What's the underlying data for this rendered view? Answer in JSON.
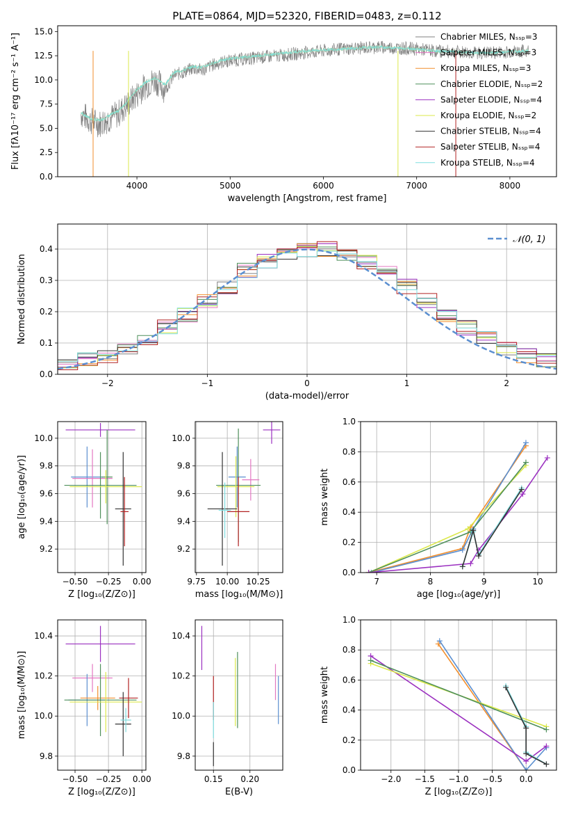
{
  "figure": {
    "title": "PLATE=0864, MJD=52320, FIBERID=0483, z=0.112"
  },
  "palette": {
    "chabrier_miles": "#808080",
    "salpeter_miles": "#e377c2",
    "kroupa_miles": "#f28e2b",
    "chabrier_elodie": "#4e8f5a",
    "salpeter_elodie": "#9b30c0",
    "kroupa_elodie": "#dbe84a",
    "chabrier_stelib": "#333333",
    "salpeter_stelib": "#b22222",
    "kroupa_stelib": "#7fdde0",
    "miles_blue": "#5b8fd0",
    "normal_curve": "#5b8fd0"
  },
  "chart_data": [
    {
      "id": "spectrum",
      "type": "line",
      "title": "PLATE=0864, MJD=52320, FIBERID=0483, z=0.112",
      "xlabel": "wavelength [Angstrom, rest frame]",
      "ylabel": "Flux [fλ10⁻¹⁷ erg cm⁻² s⁻¹ A⁻¹]",
      "xlim": [
        3150,
        8500
      ],
      "ylim": [
        0,
        15.6
      ],
      "xticks": [
        4000,
        5000,
        6000,
        7000,
        8000
      ],
      "yticks": [
        0.0,
        2.5,
        5.0,
        7.5,
        10.0,
        12.5,
        15.0
      ],
      "legend_position": "right",
      "legend": [
        "Chabrier MILES, Nₛₛₚ=3",
        "Salpeter MILES, Nₛₛₚ=3",
        "Kroupa MILES, Nₛₛₚ=3",
        "Chabrier ELODIE, Nₛₛₚ=2",
        "Salpeter ELODIE, Nₛₛₚ=4",
        "Kroupa ELODIE, Nₛₛₚ=2",
        "Chabrier STELIB, Nₛₛₚ=4",
        "Salpeter STELIB, Nₛₛₚ=4",
        "Kroupa STELIB, Nₛₛₚ=4"
      ],
      "data_wavelength": [
        3400,
        3500,
        3600,
        3700,
        3800,
        3900,
        4000,
        4100,
        4200,
        4300,
        4400,
        4500,
        4600,
        4700,
        4800,
        4900,
        5000,
        5200,
        5400,
        5600,
        5800,
        6000,
        6200,
        6400,
        6600,
        6800,
        7000,
        7200,
        7400,
        7600,
        7800,
        8000,
        8200
      ],
      "data_flux": [
        6.5,
        5.8,
        5.5,
        6.0,
        6.5,
        7.5,
        8.5,
        9.5,
        10.0,
        9.0,
        10.5,
        10.8,
        11.2,
        11.0,
        11.5,
        11.8,
        12.0,
        12.2,
        12.4,
        12.6,
        12.8,
        13.0,
        13.2,
        13.3,
        13.4,
        13.3,
        13.2,
        13.0,
        12.9,
        12.8,
        12.8,
        12.9,
        13.0
      ],
      "model_flux": [
        6.6,
        6.0,
        5.8,
        6.3,
        6.8,
        7.8,
        9.0,
        9.8,
        10.2,
        9.5,
        10.8,
        11.0,
        11.4,
        11.3,
        11.7,
        12.0,
        12.2,
        12.4,
        12.6,
        12.8,
        13.0,
        13.1,
        13.2,
        13.3,
        13.4,
        13.3,
        13.2,
        13.0,
        12.9,
        12.8,
        12.8,
        12.9,
        13.0
      ]
    },
    {
      "id": "residuals",
      "type": "line",
      "xlabel": "(data-model)/error",
      "ylabel": "Normed distribution",
      "xlim": [
        -2.5,
        2.5
      ],
      "ylim": [
        0,
        0.48
      ],
      "xticks": [
        -2,
        -1,
        0,
        1,
        2
      ],
      "xtick_labels": [
        "−2",
        "−1",
        "0",
        "1",
        "2"
      ],
      "yticks": [
        0.0,
        0.1,
        0.2,
        0.3,
        0.4
      ],
      "grid": true,
      "legend_position": "top-right",
      "legend": [
        "𝒩(0, 1)"
      ],
      "bin_edges": [
        -2.5,
        -2.3,
        -2.1,
        -1.9,
        -1.7,
        -1.5,
        -1.3,
        -1.1,
        -0.9,
        -0.7,
        -0.5,
        -0.3,
        -0.1,
        0.1,
        0.3,
        0.5,
        0.7,
        0.9,
        1.1,
        1.3,
        1.5,
        1.7,
        1.9,
        2.1,
        2.3,
        2.5
      ],
      "histogram_heights": [
        0.03,
        0.045,
        0.06,
        0.085,
        0.115,
        0.15,
        0.19,
        0.235,
        0.28,
        0.33,
        0.36,
        0.38,
        0.395,
        0.4,
        0.385,
        0.36,
        0.33,
        0.28,
        0.235,
        0.19,
        0.15,
        0.115,
        0.085,
        0.06,
        0.045
      ]
    },
    {
      "id": "age-vs-z",
      "type": "scatter",
      "xlabel": "Z [log₁₀(Z/Z⊙)]",
      "ylabel": "age  [log₁₀(age/yr)]",
      "xlim": [
        -0.63,
        0.03
      ],
      "ylim": [
        9.03,
        10.12
      ],
      "xticks": [
        -0.5,
        -0.25,
        0.0
      ],
      "xtick_labels": [
        "−0.50",
        "−0.25",
        "0.00"
      ],
      "yticks": [
        9.2,
        9.4,
        9.6,
        9.8,
        10.0
      ],
      "grid": true,
      "points": [
        {
          "x": -0.31,
          "y": 10.06,
          "xerr": 0.26,
          "yerr": 0.05,
          "color": "salpeter_elodie"
        },
        {
          "x": -0.41,
          "y": 9.72,
          "xerr": 0.12,
          "yerr": 0.22,
          "color": "miles_blue"
        },
        {
          "x": -0.37,
          "y": 9.71,
          "xerr": 0.15,
          "yerr": 0.21,
          "color": "salpeter_miles"
        },
        {
          "x": -0.26,
          "y": 9.72,
          "xerr": 0.04,
          "yerr": 0.34,
          "color": "chabrier_elodie"
        },
        {
          "x": -0.31,
          "y": 9.66,
          "xerr": 0.27,
          "yerr": 0.24,
          "color": "chabrier_elodie"
        },
        {
          "x": -0.27,
          "y": 9.65,
          "xerr": 0.27,
          "yerr": 0.12,
          "color": "kroupa_elodie"
        },
        {
          "x": -0.14,
          "y": 9.49,
          "xerr": 0.06,
          "yerr": 0.41,
          "color": "chabrier_stelib"
        },
        {
          "x": -0.13,
          "y": 9.47,
          "xerr": 0.03,
          "yerr": 0.25,
          "color": "salpeter_stelib"
        }
      ]
    },
    {
      "id": "age-vs-mass",
      "type": "scatter",
      "xlabel": "mass [log₁₀(M/M⊙)]",
      "xlim": [
        9.74,
        10.45
      ],
      "ylim": [
        9.03,
        10.12
      ],
      "xticks": [
        9.75,
        10.0,
        10.25
      ],
      "yticks": [
        9.2,
        9.4,
        9.6,
        9.8,
        10.0
      ],
      "grid": true,
      "points": [
        {
          "x": 10.36,
          "y": 10.06,
          "xerr": 0.07,
          "yerr": 0.1,
          "color": "salpeter_elodie"
        },
        {
          "x": 10.08,
          "y": 9.72,
          "xerr": 0.07,
          "yerr": 0.22,
          "color": "miles_blue"
        },
        {
          "x": 10.19,
          "y": 9.7,
          "xerr": 0.07,
          "yerr": 0.15,
          "color": "salpeter_miles"
        },
        {
          "x": 10.09,
          "y": 9.66,
          "xerr": 0.18,
          "yerr": 0.41,
          "color": "chabrier_elodie"
        },
        {
          "x": 10.07,
          "y": 9.65,
          "xerr": 0.15,
          "yerr": 0.22,
          "color": "kroupa_elodie"
        },
        {
          "x": 9.96,
          "y": 9.49,
          "xerr": 0.12,
          "yerr": 0.41,
          "color": "chabrier_stelib"
        },
        {
          "x": 10.09,
          "y": 9.47,
          "xerr": 0.09,
          "yerr": 0.25,
          "color": "salpeter_stelib"
        },
        {
          "x": 9.98,
          "y": 9.48,
          "xerr": 0.05,
          "yerr": 0.2,
          "color": "kroupa_stelib"
        }
      ]
    },
    {
      "id": "mass-weight-vs-age",
      "type": "line",
      "xlabel": "age  [log₁₀(age/yr)]",
      "ylabel": "mass weight",
      "xlim": [
        6.7,
        10.35
      ],
      "ylim": [
        0,
        1.0
      ],
      "xticks": [
        7,
        8,
        9,
        10
      ],
      "yticks": [
        0.0,
        0.2,
        0.4,
        0.6,
        0.8,
        1.0
      ],
      "grid": true,
      "series": [
        {
          "color": "kroupa_miles",
          "x": [
            6.85,
            8.6,
            8.75,
            9.78
          ],
          "y": [
            0.0,
            0.16,
            0.3,
            0.84
          ]
        },
        {
          "color": "miles_blue",
          "x": [
            6.9,
            8.6,
            8.8,
            9.78
          ],
          "y": [
            0.0,
            0.15,
            0.29,
            0.86
          ]
        },
        {
          "color": "kroupa_elodie",
          "x": [
            6.85,
            8.7,
            9.78
          ],
          "y": [
            0.0,
            0.29,
            0.71
          ]
        },
        {
          "color": "chabrier_elodie",
          "x": [
            6.85,
            8.75,
            9.78
          ],
          "y": [
            0.0,
            0.27,
            0.73
          ]
        },
        {
          "color": "salpeter_elodie",
          "x": [
            6.85,
            8.75,
            8.9,
            9.72,
            10.18
          ],
          "y": [
            0.0,
            0.06,
            0.15,
            0.52,
            0.76
          ]
        },
        {
          "color": "kroupa_stelib",
          "x": [
            8.6,
            8.8,
            8.9,
            9.7
          ],
          "y": [
            0.04,
            0.27,
            0.12,
            0.56
          ]
        },
        {
          "color": "chabrier_stelib",
          "x": [
            8.6,
            8.8,
            8.9,
            9.7
          ],
          "y": [
            0.04,
            0.28,
            0.11,
            0.55
          ]
        }
      ]
    },
    {
      "id": "mass-vs-z",
      "type": "scatter",
      "xlabel": "Z [log₁₀(Z/Z⊙)]",
      "ylabel": "mass [log₁₀(M/M⊙)]",
      "xlim": [
        -0.63,
        0.03
      ],
      "ylim": [
        9.73,
        10.48
      ],
      "xticks": [
        -0.5,
        -0.25,
        0.0
      ],
      "xtick_labels": [
        "−0.50",
        "−0.25",
        "0.00"
      ],
      "yticks": [
        9.8,
        10.0,
        10.2,
        10.4
      ],
      "grid": true,
      "points": [
        {
          "x": -0.31,
          "y": 10.36,
          "xerr": 0.26,
          "yerr": 0.09,
          "color": "salpeter_elodie"
        },
        {
          "x": -0.37,
          "y": 10.19,
          "xerr": 0.15,
          "yerr": 0.07,
          "color": "salpeter_miles"
        },
        {
          "x": -0.41,
          "y": 10.08,
          "xerr": 0.14,
          "yerr": 0.13,
          "color": "miles_blue"
        },
        {
          "x": -0.33,
          "y": 10.09,
          "xerr": 0.13,
          "yerr": 0.06,
          "color": "kroupa_miles"
        },
        {
          "x": -0.31,
          "y": 10.08,
          "xerr": 0.27,
          "yerr": 0.18,
          "color": "chabrier_elodie"
        },
        {
          "x": -0.27,
          "y": 10.07,
          "xerr": 0.27,
          "yerr": 0.15,
          "color": "kroupa_elodie"
        },
        {
          "x": -0.1,
          "y": 10.09,
          "xerr": 0.07,
          "yerr": 0.1,
          "color": "salpeter_stelib"
        },
        {
          "x": -0.14,
          "y": 9.96,
          "xerr": 0.06,
          "yerr": 0.16,
          "color": "chabrier_stelib"
        },
        {
          "x": -0.12,
          "y": 9.98,
          "xerr": 0.04,
          "yerr": 0.06,
          "color": "kroupa_stelib"
        }
      ]
    },
    {
      "id": "mass-vs-ebv",
      "type": "scatter",
      "xlabel": "E(B-V)",
      "xlim": [
        0.125,
        0.245
      ],
      "ylim": [
        9.73,
        10.48
      ],
      "xticks": [
        0.15,
        0.2
      ],
      "yticks": [
        9.8,
        10.0,
        10.2,
        10.4
      ],
      "grid": true,
      "points": [
        {
          "x": 0.134,
          "y": 10.34,
          "yerr": 0.11,
          "color": "salpeter_elodie"
        },
        {
          "x": 0.15,
          "y": 10.09,
          "yerr": 0.11,
          "color": "salpeter_stelib"
        },
        {
          "x": 0.15,
          "y": 9.98,
          "yerr": 0.09,
          "color": "kroupa_stelib"
        },
        {
          "x": 0.15,
          "y": 9.81,
          "yerr": 0.06,
          "color": "chabrier_stelib"
        },
        {
          "x": 0.18,
          "y": 10.12,
          "yerr": 0.17,
          "color": "kroupa_elodie"
        },
        {
          "x": 0.183,
          "y": 10.13,
          "yerr": 0.19,
          "color": "chabrier_elodie"
        },
        {
          "x": 0.235,
          "y": 10.17,
          "yerr": 0.09,
          "color": "salpeter_miles"
        },
        {
          "x": 0.239,
          "y": 10.08,
          "yerr": 0.12,
          "color": "miles_blue"
        }
      ]
    },
    {
      "id": "mass-weight-vs-z",
      "type": "line",
      "xlabel": "Z [log₁₀(Z/Z⊙)]",
      "ylabel": "mass weight",
      "xlim": [
        -2.45,
        0.45
      ],
      "ylim": [
        0,
        1.0
      ],
      "xticks": [
        -2.0,
        -1.5,
        -1.0,
        -0.5,
        0.0
      ],
      "xtick_labels": [
        "−2.0",
        "−1.5",
        "−1.0",
        "−0.5",
        "0.0"
      ],
      "yticks": [
        0.0,
        0.2,
        0.4,
        0.6,
        0.8,
        1.0
      ],
      "grid": true,
      "series": [
        {
          "color": "kroupa_miles",
          "x": [
            -1.3,
            0.0
          ],
          "y": [
            0.84,
            0.0
          ]
        },
        {
          "color": "miles_blue",
          "x": [
            -1.28,
            0.0,
            0.3
          ],
          "y": [
            0.86,
            0.0,
            0.15
          ]
        },
        {
          "color": "salpeter_elodie",
          "x": [
            -2.3,
            0.0,
            0.3
          ],
          "y": [
            0.76,
            0.06,
            0.16
          ]
        },
        {
          "color": "kroupa_elodie",
          "x": [
            -2.3,
            0.3
          ],
          "y": [
            0.71,
            0.29
          ]
        },
        {
          "color": "chabrier_elodie",
          "x": [
            -2.3,
            0.3
          ],
          "y": [
            0.73,
            0.27
          ]
        },
        {
          "color": "kroupa_stelib",
          "x": [
            -0.3,
            0.0,
            0.0,
            0.3
          ],
          "y": [
            0.56,
            0.29,
            0.12,
            0.04
          ]
        },
        {
          "color": "chabrier_stelib",
          "x": [
            -0.3,
            0.0,
            0.0,
            0.3
          ],
          "y": [
            0.55,
            0.28,
            0.11,
            0.04
          ]
        }
      ]
    }
  ]
}
